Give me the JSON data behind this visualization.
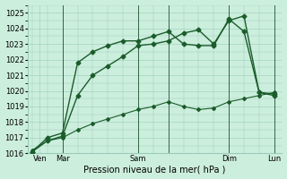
{
  "xlabel": "Pression niveau de la mer( hPa )",
  "ylim": [
    1016,
    1025.5
  ],
  "yticks": [
    1016,
    1017,
    1018,
    1019,
    1020,
    1021,
    1022,
    1023,
    1024,
    1025
  ],
  "background_color": "#cceedd",
  "grid_color": "#99ccbb",
  "line_color": "#1a5c2a",
  "series": [
    {
      "x": [
        0,
        1,
        2,
        3,
        4,
        5,
        6,
        7,
        8,
        9,
        10,
        11,
        12,
        13,
        14,
        15,
        16
      ],
      "y": [
        1016.1,
        1016.8,
        1017.1,
        1019.7,
        1021.0,
        1021.6,
        1022.2,
        1022.9,
        1023.0,
        1023.2,
        1023.7,
        1023.9,
        1023.0,
        1024.5,
        1024.8,
        1019.9,
        1019.8
      ],
      "marker": "D",
      "markersize": 2.5,
      "linewidth": 1.0
    },
    {
      "x": [
        0,
        1,
        2,
        3,
        4,
        5,
        6,
        7,
        8,
        9,
        10,
        11,
        12,
        13,
        14,
        15,
        16
      ],
      "y": [
        1016.1,
        1017.0,
        1017.3,
        1021.8,
        1022.5,
        1022.9,
        1023.2,
        1023.2,
        1023.5,
        1023.8,
        1023.0,
        1022.9,
        1022.9,
        1024.6,
        1023.8,
        1019.9,
        1019.7
      ],
      "marker": "D",
      "markersize": 2.5,
      "linewidth": 1.0
    },
    {
      "x": [
        0,
        1,
        2,
        3,
        4,
        5,
        6,
        7,
        8,
        9,
        10,
        11,
        12,
        13,
        14,
        15,
        16
      ],
      "y": [
        1016.2,
        1016.8,
        1017.0,
        1017.5,
        1017.9,
        1018.2,
        1018.5,
        1018.8,
        1019.0,
        1019.3,
        1019.0,
        1018.8,
        1018.9,
        1019.3,
        1019.5,
        1019.7,
        1019.9
      ],
      "marker": "D",
      "markersize": 2.0,
      "linewidth": 0.8
    }
  ],
  "vline_positions": [
    2,
    7,
    9,
    13,
    16
  ],
  "vline_color": "#336644",
  "xtick_positions": [
    0.5,
    2,
    7,
    9,
    13,
    16
  ],
  "xtick_labels": [
    "Ven",
    "Mar",
    "Sam",
    "",
    "Dim",
    "Lun"
  ],
  "xlabel_fontsize": 7,
  "tick_fontsize": 6
}
